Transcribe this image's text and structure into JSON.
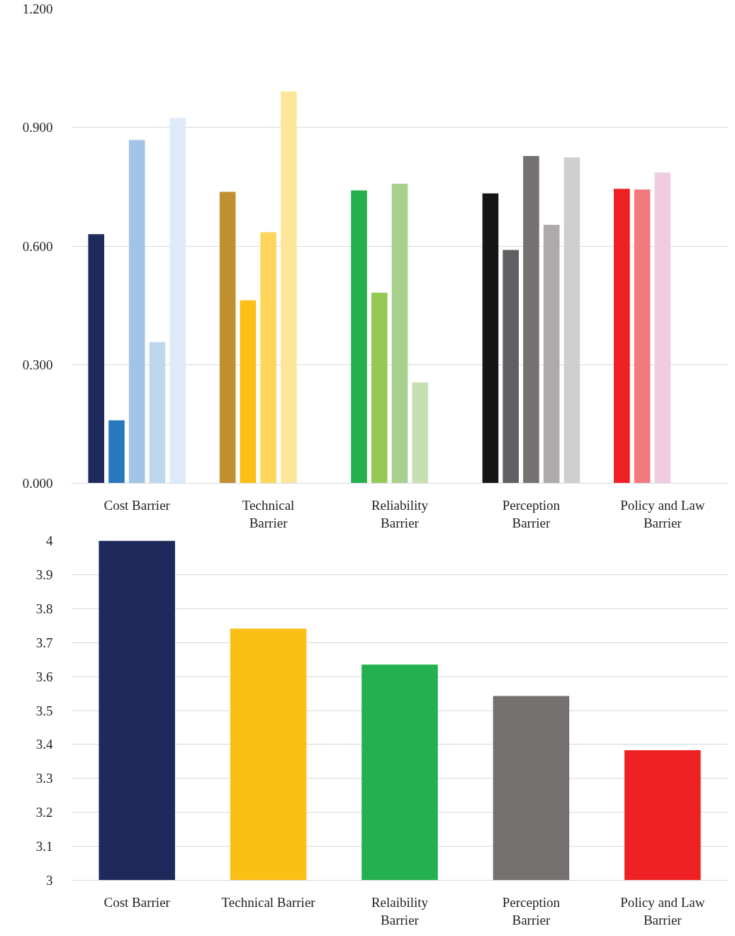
{
  "chart_data": [
    {
      "type": "bar",
      "categories": [
        "Cost Barrier",
        "Technical Barrier",
        "Reliability Barrier",
        "Perception Barrier",
        "Policy and Law Barrier"
      ],
      "series": [
        {
          "colors": [
            "#1f2a5c",
            "#c09030",
            "#24b04f",
            "#161616",
            "#ee2024"
          ],
          "values": [
            0.63,
            0.737,
            0.741,
            0.733,
            0.745
          ]
        },
        {
          "colors": [
            "#2878bd",
            "#fbbf16",
            "#93c954",
            "#606064",
            "#f17a80"
          ],
          "values": [
            0.159,
            0.463,
            0.482,
            0.59,
            0.743
          ]
        },
        {
          "colors": [
            "#a2c4e6",
            "#fed65c",
            "#a8d18d",
            "#767171",
            "#f0cce0"
          ],
          "values": [
            0.868,
            0.635,
            0.758,
            0.828,
            0.786
          ]
        },
        {
          "colors": [
            "#bdd7ee",
            "#fee699",
            "#c6e0b4",
            "#aeaaaa",
            null
          ],
          "values": [
            0.357,
            0.991,
            0.255,
            0.654,
            null
          ]
        },
        {
          "colors": [
            "#deebf7",
            null,
            null,
            "#d0cece",
            null
          ],
          "values": [
            0.924,
            null,
            null,
            0.824,
            null
          ]
        }
      ],
      "ylim": [
        0,
        1.2
      ],
      "yticks": [
        {
          "value": 0,
          "label": "0.000"
        },
        {
          "value": 0.3,
          "label": "0.300"
        },
        {
          "value": 0.6,
          "label": "0.600"
        },
        {
          "value": 0.9,
          "label": "0.900"
        },
        {
          "value": 1.2,
          "label": "1.200"
        }
      ],
      "grid": "y"
    },
    {
      "type": "bar",
      "categories": [
        "Cost Barrier",
        "Technical Barrier",
        "Relaibility Barrier",
        "Perception Barrier",
        "Policy and Law Barrier"
      ],
      "values": [
        4.0,
        3.741,
        3.635,
        3.543,
        3.383
      ],
      "colors": [
        "#1f2a5c",
        "#fbbf16",
        "#24b04f",
        "#767171",
        "#ee2024"
      ],
      "ylim": [
        3,
        4
      ],
      "yticks": [
        3,
        3.1,
        3.2,
        3.3,
        3.4,
        3.5,
        3.6,
        3.7,
        3.8,
        3.9,
        4
      ],
      "grid": "y"
    }
  ]
}
